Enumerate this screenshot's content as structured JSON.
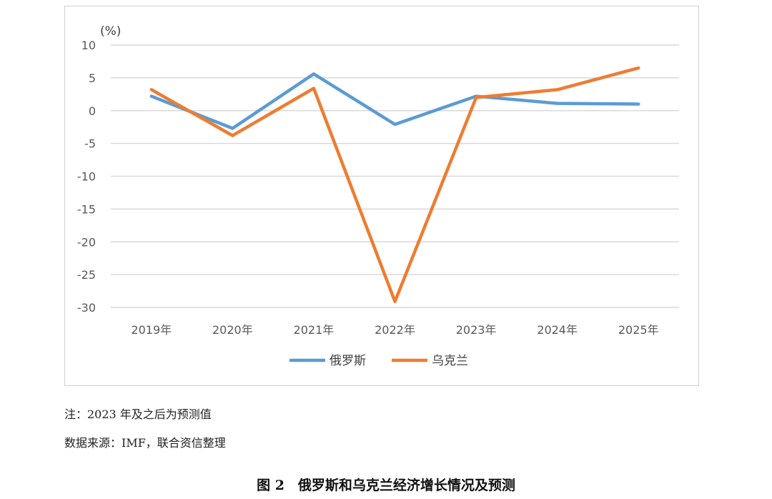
{
  "chart_data": {
    "type": "line",
    "ylabel": "(%)",
    "ylim": [
      -30,
      10
    ],
    "yticks": [
      "10",
      "5",
      "0",
      "-5",
      "-10",
      "-15",
      "-20",
      "-25",
      "-30"
    ],
    "categories": [
      "2019年",
      "2020年",
      "2021年",
      "2022年",
      "2023年",
      "2024年",
      "2025年"
    ],
    "series": [
      {
        "name": "俄罗斯",
        "color": "#5b9bd5",
        "values": [
          2.2,
          -2.7,
          5.6,
          -2.1,
          2.2,
          1.1,
          1.0
        ]
      },
      {
        "name": "乌克兰",
        "color": "#ed7d31",
        "values": [
          3.2,
          -3.8,
          3.4,
          -29.1,
          2.0,
          3.2,
          6.5
        ]
      }
    ],
    "grid": true,
    "legend": "bottom"
  },
  "notes": {
    "note": "注：2023 年及之后为预测值",
    "source": "数据来源：IMF，联合资信整理"
  },
  "caption": "图 2　俄罗斯和乌克兰经济增长情况及预测"
}
